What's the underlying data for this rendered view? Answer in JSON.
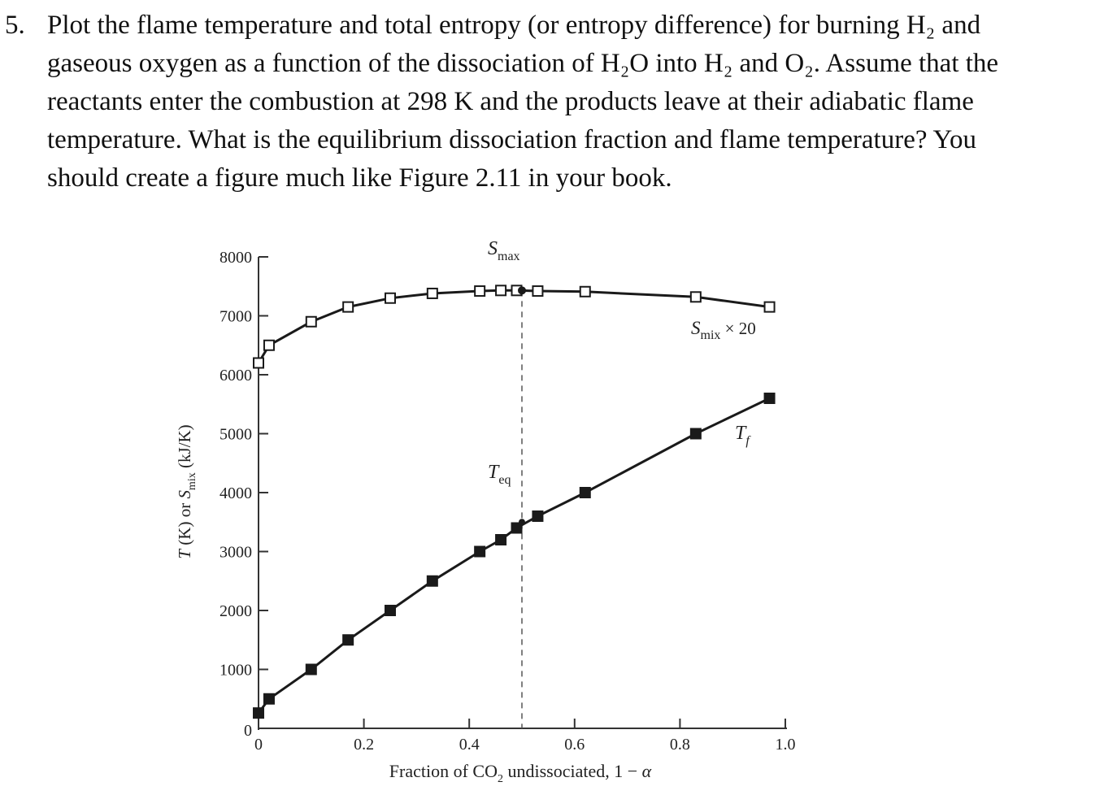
{
  "problem": {
    "number": "5.",
    "lines": [
      "Plot the flame temperature and total entropy (or entropy difference) for burning H₂ and",
      "gaseous oxygen as a function of the dissociation of H₂O into H₂ and O₂.  Assume that the",
      "reactants enter the combustion at 298 K and the products leave at their adiabatic flame",
      "temperature.  What is the equilibrium dissociation fraction and flame temperature? You",
      "should create a figure much like Figure 2.11 in your book."
    ]
  },
  "chart_data": {
    "type": "line",
    "title": "",
    "xlabel": "Fraction of CO₂ undissociated, 1 − α",
    "ylabel": "T (K) or Sₘᵢₓ (kJ/K)",
    "xlim": [
      0,
      1.0
    ],
    "ylim": [
      0,
      8000
    ],
    "x_tick_labels": [
      "0",
      "0.2",
      "0.4",
      "0.6",
      "0.8",
      "1.0"
    ],
    "x_tick_values": [
      0,
      0.2,
      0.4,
      0.6,
      0.8,
      1.0
    ],
    "y_tick_labels": [
      "0",
      "1000",
      "2000",
      "3000",
      "4000",
      "5000",
      "6000",
      "7000",
      "8000"
    ],
    "y_tick_values": [
      0,
      1000,
      2000,
      3000,
      4000,
      5000,
      6000,
      7000,
      8000
    ],
    "grid": false,
    "series": [
      {
        "name": "Smix × 20",
        "marker": "open-square",
        "x": [
          0.0,
          0.02,
          0.1,
          0.17,
          0.25,
          0.33,
          0.42,
          0.46,
          0.49,
          0.53,
          0.62,
          0.83,
          0.97
        ],
        "y": [
          6200,
          6500,
          6900,
          7150,
          7300,
          7380,
          7420,
          7430,
          7430,
          7420,
          7410,
          7320,
          7150
        ]
      },
      {
        "name": "Tf",
        "marker": "filled-square",
        "x": [
          0.0,
          0.02,
          0.1,
          0.17,
          0.25,
          0.33,
          0.42,
          0.46,
          0.49,
          0.53,
          0.62,
          0.83,
          0.97
        ],
        "y": [
          260,
          500,
          1000,
          1500,
          2000,
          2500,
          3000,
          3200,
          3400,
          3600,
          4000,
          5000,
          5600
        ]
      }
    ],
    "annotations": [
      {
        "label": "Smax",
        "main": "S",
        "sub": "max",
        "x": 0.5,
        "y": 7430
      },
      {
        "label": "Teq",
        "main": "T",
        "sub": "eq",
        "x": 0.5,
        "y": 3500
      },
      {
        "label": "Smix × 20",
        "main": "S",
        "sub": "mix",
        "tail": " × 20"
      },
      {
        "label": "Tf",
        "main": "T",
        "sub": "f"
      }
    ],
    "equilibrium_x": 0.5,
    "colors": {
      "line": "#1a1a1a",
      "marker_fill_filled": "#1a1a1a",
      "marker_fill_open": "#ffffff",
      "dashed_line": "#555555"
    }
  }
}
